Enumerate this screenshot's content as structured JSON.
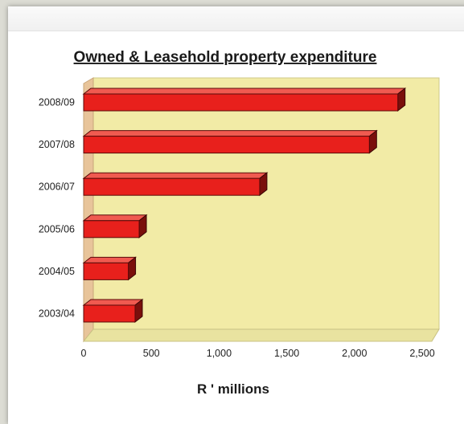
{
  "chart_data": {
    "type": "bar",
    "orientation": "horizontal",
    "title": "Owned & Leasehold property expenditure",
    "xlabel": "R ' millions",
    "ylabel": "",
    "categories": [
      "2008/09",
      "2007/08",
      "2006/07",
      "2005/06",
      "2004/05",
      "2003/04"
    ],
    "values": [
      2320,
      2110,
      1300,
      410,
      330,
      380
    ],
    "xlim": [
      0,
      2500
    ],
    "xticks": [
      "0",
      "500",
      "1,000",
      "1,500",
      "2,000",
      "2,500"
    ],
    "grid": false,
    "legend": "none",
    "colors": {
      "bar_front": "#e8201c",
      "bar_top": "#f05a50",
      "bar_side": "#7a0f0c",
      "plot_back": "#f2eba6",
      "plot_floor": "#e9e3a0",
      "plot_wall": "#e8c49a"
    }
  }
}
